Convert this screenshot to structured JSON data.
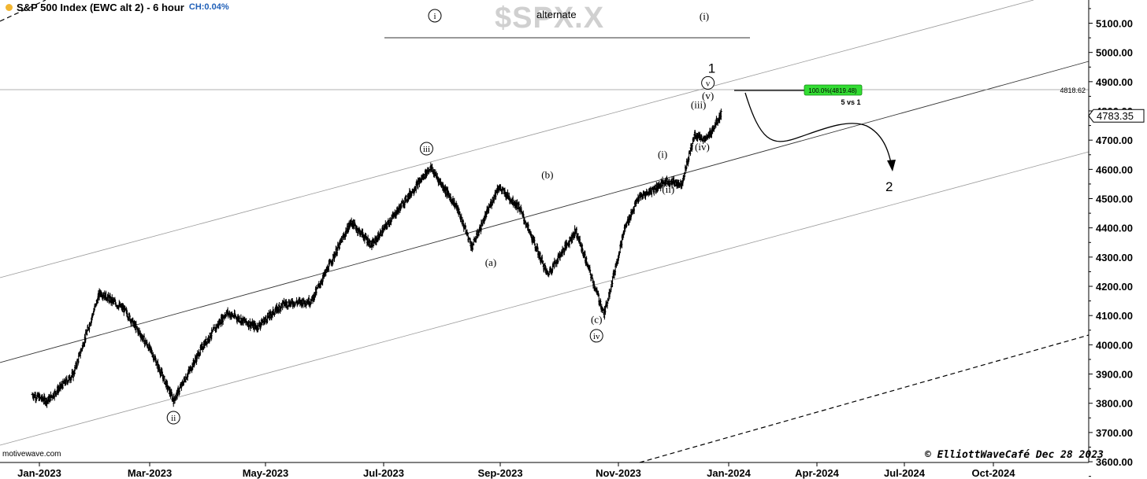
{
  "header": {
    "title": "S&P 500 Index (EWC alt 2) - 6 hour",
    "change": "CH:0.04%",
    "watermark": "$SPX.X",
    "alternate_label": "alternate"
  },
  "footer": {
    "source": "motivewave.com",
    "copyright": "© ElliottWaveCafé Dec 28 2023"
  },
  "colors": {
    "bars": "#000000",
    "target_box": "#33dd33",
    "channel": "#888888",
    "accent_dot": "#f2b632"
  },
  "chart_data": {
    "type": "bar",
    "title": "S&P 500 Index (EWC alt 2) - 6 hour",
    "x_tick_labels": [
      "Jan-2023",
      "Mar-2023",
      "May-2023",
      "Jul-2023",
      "Sep-2023",
      "Nov-2023",
      "Jan-2024",
      "Apr-2024",
      "Jul-2024",
      "Oct-2024"
    ],
    "y_tick_labels": [
      "5100.00",
      "5000.00",
      "4900.00",
      "4800.00",
      "4700.00",
      "4600.00",
      "4500.00",
      "4400.00",
      "4300.00",
      "4200.00",
      "4100.00",
      "4000.00",
      "3900.00",
      "3800.00",
      "3700.00",
      "3600.00"
    ],
    "ylim": [
      3550,
      5170
    ],
    "last_price": "4783.35",
    "horizontal_level": "4818.62",
    "target_box_label": "100.0%(4819.48)",
    "target_note": "5 vs 1",
    "legend_wave_labels": [
      "i",
      "(i)"
    ],
    "price_path": [
      {
        "date": "2022-12-28",
        "value": 3830
      },
      {
        "date": "2023-01-05",
        "value": 3808
      },
      {
        "date": "2023-01-19",
        "value": 3900
      },
      {
        "date": "2023-02-02",
        "value": 4180
      },
      {
        "date": "2023-02-15",
        "value": 4120
      },
      {
        "date": "2023-03-01",
        "value": 3980
      },
      {
        "date": "2023-03-13",
        "value": 3810
      },
      {
        "date": "2023-03-28",
        "value": 3990
      },
      {
        "date": "2023-04-10",
        "value": 4110
      },
      {
        "date": "2023-04-26",
        "value": 4060
      },
      {
        "date": "2023-05-10",
        "value": 4140
      },
      {
        "date": "2023-05-25",
        "value": 4150
      },
      {
        "date": "2023-06-15",
        "value": 4420
      },
      {
        "date": "2023-06-26",
        "value": 4340
      },
      {
        "date": "2023-07-12",
        "value": 4480
      },
      {
        "date": "2023-07-27",
        "value": 4607
      },
      {
        "date": "2023-08-10",
        "value": 4470
      },
      {
        "date": "2023-08-18",
        "value": 4335
      },
      {
        "date": "2023-09-01",
        "value": 4540
      },
      {
        "date": "2023-09-12",
        "value": 4470
      },
      {
        "date": "2023-09-27",
        "value": 4240
      },
      {
        "date": "2023-10-12",
        "value": 4390
      },
      {
        "date": "2023-10-27",
        "value": 4104
      },
      {
        "date": "2023-11-07",
        "value": 4400
      },
      {
        "date": "2023-11-14",
        "value": 4500
      },
      {
        "date": "2023-11-29",
        "value": 4560
      },
      {
        "date": "2023-12-07",
        "value": 4550
      },
      {
        "date": "2023-12-14",
        "value": 4720
      },
      {
        "date": "2023-12-20",
        "value": 4700
      },
      {
        "date": "2023-12-28",
        "value": 4790
      }
    ],
    "annotations": [
      {
        "label": "ii",
        "circled": true,
        "date": "2023-03-13",
        "value": 3740
      },
      {
        "label": "iii",
        "circled": true,
        "date": "2023-07-25",
        "value": 4660
      },
      {
        "label": "(a)",
        "circled": false,
        "date": "2023-08-28",
        "value": 4270
      },
      {
        "label": "(b)",
        "circled": false,
        "date": "2023-09-27",
        "value": 4570
      },
      {
        "label": "(c)",
        "circled": false,
        "date": "2023-10-23",
        "value": 4075
      },
      {
        "label": "iv",
        "circled": true,
        "date": "2023-10-23",
        "value": 4020
      },
      {
        "label": "(i)",
        "circled": false,
        "date": "2023-11-27",
        "value": 4640
      },
      {
        "label": "(ii)",
        "circled": false,
        "date": "2023-11-30",
        "value": 4520
      },
      {
        "label": "(iii)",
        "circled": false,
        "date": "2023-12-16",
        "value": 4810
      },
      {
        "label": "(iv)",
        "circled": false,
        "date": "2023-12-18",
        "value": 4665
      },
      {
        "label": "(v)",
        "circled": false,
        "date": "2023-12-21",
        "value": 4840
      },
      {
        "label": "v",
        "circled": true,
        "date": "2023-12-21",
        "value": 4885
      },
      {
        "label": "1",
        "circled": false,
        "date": "2023-12-23",
        "value": 4930
      },
      {
        "label": "2",
        "circled": false,
        "date": "2024-03-26",
        "value": 4525
      }
    ],
    "grid": false
  }
}
